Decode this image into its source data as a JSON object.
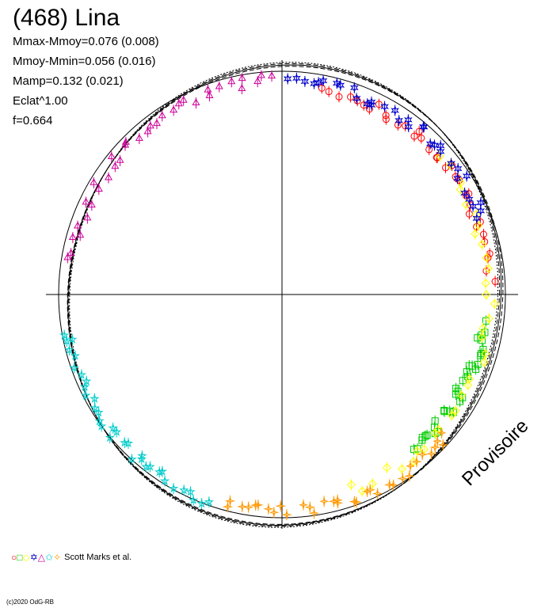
{
  "title": "(468) Lina",
  "stats": {
    "line1": "Mmax-Mmoy=0.076 (0.008)",
    "line2": "Mmoy-Mmin=0.056 (0.016)",
    "line3": "Mamp=0.132 (0.021)",
    "line4": "Eclat^1.00",
    "line5": "f=0.664"
  },
  "legend": {
    "symbols": "○□◇✡△✩✧",
    "label": "Scott Marks et al."
  },
  "watermark": "Provisoire",
  "credit": "(c)2020 OdG-RB",
  "chart_data": {
    "type": "scatter",
    "projection": "polar lightcurve (magnitude deviation vs. phase angle)",
    "mmax_minus_mmoy": 0.076,
    "mmax_minus_mmoy_err": 0.008,
    "mmoy_minus_mmin": 0.056,
    "mmoy_minus_mmin_err": 0.016,
    "amplitude": 0.132,
    "amplitude_err": 0.021,
    "f": 0.664,
    "series": [
      {
        "color": "#ff0000",
        "marker": "circle",
        "phase_range": [
          5,
          78
        ],
        "radius": 0.935
      },
      {
        "color": "#00cc00",
        "marker": "square",
        "phase_range": [
          -50,
          -8
        ],
        "radius": 0.91
      },
      {
        "color": "#ffff00",
        "marker": "diamond",
        "phase_range": [
          -70,
          40
        ],
        "radius": 0.93
      },
      {
        "color": "#0000cc",
        "marker": "star6",
        "phase_range": [
          20,
          88
        ],
        "radius": 0.96
      },
      {
        "color": "#cc0099",
        "marker": "triangle",
        "phase_range": [
          92,
          170
        ],
        "radius": 0.96
      },
      {
        "color": "#00cccc",
        "marker": "star5",
        "phase_range": [
          190,
          250
        ],
        "radius": 0.98
      },
      {
        "color": "#ff9900",
        "marker": "star4",
        "phase_range": [
          255,
          320
        ],
        "radius": 0.97
      }
    ]
  }
}
